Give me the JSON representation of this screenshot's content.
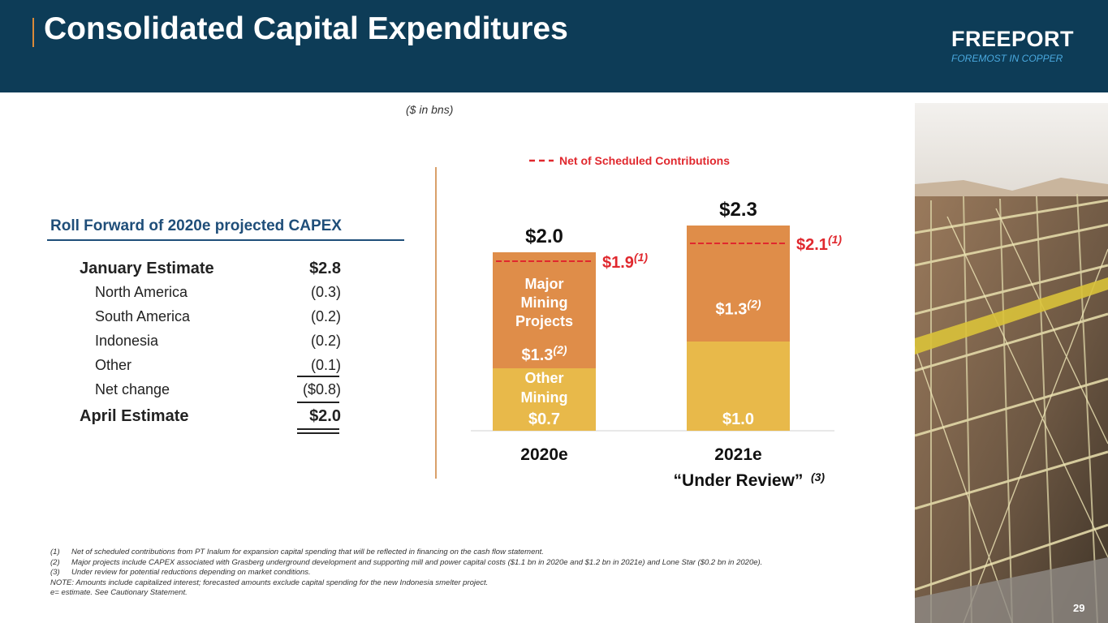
{
  "header": {
    "title": "Consolidated Capital Expenditures"
  },
  "logo": {
    "name": "FREEPORT",
    "tagline": "FOREMOST IN COPPER"
  },
  "units_note": "($ in bns)",
  "roll_forward": {
    "title": "Roll Forward of 2020e projected CAPEX",
    "rows": [
      {
        "label": "January Estimate",
        "value": "$2.8"
      },
      {
        "label": "North America",
        "value": "(0.3)"
      },
      {
        "label": "South America",
        "value": "(0.2)"
      },
      {
        "label": "Indonesia",
        "value": "(0.2)"
      },
      {
        "label": "Other",
        "value": "(0.1)"
      },
      {
        "label": "Net change",
        "value": "($0.8)"
      },
      {
        "label": "April Estimate",
        "value": "$2.0"
      }
    ]
  },
  "chart_data": {
    "type": "bar",
    "stacked": true,
    "categories": [
      "2020e",
      "2021e"
    ],
    "category_sublabels": [
      "",
      "“Under Review”"
    ],
    "category_sublabel_notes": [
      "",
      "(3)"
    ],
    "series": [
      {
        "name": "Other Mining",
        "values": [
          0.7,
          1.0
        ],
        "value_labels": [
          "$0.7",
          "$1.0"
        ],
        "color": "#e8b94a"
      },
      {
        "name": "Major Mining Projects",
        "values": [
          1.3,
          1.3
        ],
        "value_labels": [
          "$1.3",
          "$1.3"
        ],
        "value_notes": [
          "(2)",
          "(2)"
        ],
        "color": "#df8d49"
      }
    ],
    "series_text_in_bar": [
      [
        "Other",
        "Mining"
      ],
      [
        "Major",
        "Mining",
        "Projects"
      ]
    ],
    "totals": [
      2.0,
      2.3
    ],
    "total_labels": [
      "$2.0",
      "$2.3"
    ],
    "net_of_contributions": {
      "legend": "Net of Scheduled Contributions",
      "values": [
        1.9,
        2.1
      ],
      "labels": [
        "$1.9",
        "$2.1"
      ],
      "notes": [
        "(1)",
        "(1)"
      ],
      "color": "#e0282e"
    },
    "ylim": [
      0,
      2.3
    ]
  },
  "footnotes": [
    {
      "num": "(1)",
      "text": "Net of scheduled contributions from PT Inalum for expansion capital spending that will be reflected in financing on the cash flow statement."
    },
    {
      "num": "(2)",
      "text": "Major projects include CAPEX associated with Grasberg underground development and supporting mill and power capital costs ($1.1 bn in 2020e and $1.2 bn in 2021e) and Lone Star ($0.2 bn in 2020e)."
    },
    {
      "num": "(3)",
      "text": "Under review for potential reductions depending on market conditions."
    }
  ],
  "note": "NOTE: Amounts include capitalized interest; forecasted amounts exclude capital spending for the new Indonesia smelter project.",
  "estimate_note": "e= estimate. See Cautionary Statement.",
  "page_number": "29"
}
